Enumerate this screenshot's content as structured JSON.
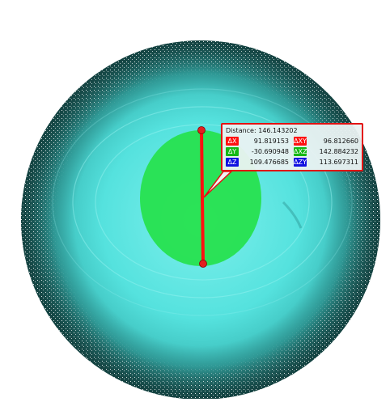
{
  "scene": {
    "colors": {
      "mesh_outer": "#1f5a58",
      "mesh_main": "#52e0dc",
      "mesh_light": "#7ef0ec",
      "selection": "#27e14f",
      "measure_line": "#ff1111",
      "endpoint": "#e32020"
    }
  },
  "measurement": {
    "distance_label": "Distance:",
    "distance_value": "146.143202",
    "rows": [
      [
        {
          "label": "ΔX",
          "value": "91.819153",
          "color": "#ff1111"
        },
        {
          "label": "ΔXY",
          "value": "96.812660",
          "color": "#ff1111"
        }
      ],
      [
        {
          "label": "ΔY",
          "value": "-30.690948",
          "color": "#14b814"
        },
        {
          "label": "ΔXZ",
          "value": "142.884232",
          "color": "#14b814"
        }
      ],
      [
        {
          "label": "ΔZ",
          "value": "109.476685",
          "color": "#1010e0"
        },
        {
          "label": "ΔZY",
          "value": "113.697311",
          "color": "#1010e0"
        }
      ]
    ]
  }
}
